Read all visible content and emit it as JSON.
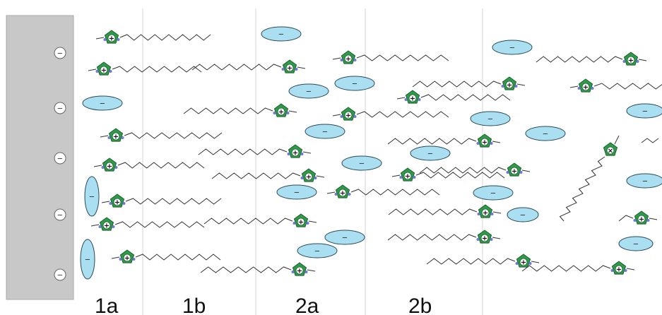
{
  "regions": [
    {
      "id": "1a",
      "label": "1a"
    },
    {
      "id": "1b",
      "label": "1b"
    },
    {
      "id": "2a",
      "label": "2a"
    },
    {
      "id": "2b",
      "label": "2b"
    }
  ],
  "symbols": {
    "anion_sign": "−",
    "cation_sign": "+",
    "neutral_sign": "×",
    "electrode_charge": "−"
  },
  "colors": {
    "electrode": "#c8c8c8",
    "electrode_edge": "#a8a8a8",
    "anion_fill": "#a9dff0",
    "anion_stroke": "#2b4a5a",
    "ring_fill": "#2e9b4a",
    "ring_stroke": "#1d5e2c",
    "nitrogen": "#6c78e0",
    "chain": "#333333",
    "divider": "#d5d5d5"
  },
  "icons": {
    "cation": "imidazolium-cation-icon",
    "anion": "anion-ellipse-icon",
    "electrode_charge": "minus-circle-icon"
  }
}
